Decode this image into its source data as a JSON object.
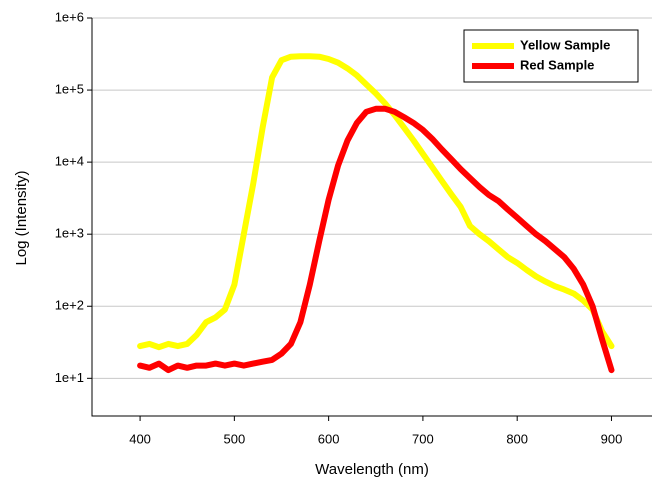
{
  "chart_data": {
    "type": "line",
    "x_label": "Wavelength (nm)",
    "y_label": "Log (Intensity)",
    "log_y": true,
    "grid": true,
    "legend": "upper right",
    "xlim": [
      349,
      943
    ],
    "xticks": [
      400,
      500,
      600,
      700,
      800,
      900
    ],
    "ylim": [
      3,
      1000000
    ],
    "yticks": [
      {
        "value": 10,
        "label": "1e+1"
      },
      {
        "value": 100,
        "label": "1e+2"
      },
      {
        "value": 1000,
        "label": "1e+3"
      },
      {
        "value": 10000,
        "label": "1e+4"
      },
      {
        "value": 100000,
        "label": "1e+5"
      },
      {
        "value": 1000000,
        "label": "1e+6"
      }
    ],
    "x": [
      400,
      410,
      420,
      430,
      440,
      450,
      460,
      470,
      480,
      490,
      500,
      510,
      520,
      530,
      540,
      550,
      560,
      570,
      580,
      590,
      600,
      610,
      620,
      630,
      640,
      650,
      660,
      670,
      680,
      690,
      700,
      710,
      720,
      730,
      740,
      750,
      760,
      770,
      780,
      790,
      800,
      810,
      820,
      830,
      840,
      850,
      860,
      870,
      880,
      890,
      900
    ],
    "series": [
      {
        "name": "Yellow Sample",
        "color": "#ffff00",
        "values": [
          28,
          30,
          27,
          30,
          28,
          30,
          40,
          60,
          70,
          90,
          200,
          1000,
          5000,
          30000,
          150000,
          260000,
          290000,
          295000,
          295000,
          290000,
          270000,
          240000,
          200000,
          160000,
          120000,
          90000,
          65000,
          45000,
          30000,
          20000,
          13000,
          8500,
          5500,
          3600,
          2400,
          1300,
          1000,
          800,
          620,
          480,
          400,
          320,
          260,
          220,
          190,
          170,
          150,
          120,
          90,
          45,
          28
        ]
      },
      {
        "name": "Red Sample",
        "color": "#ff0000",
        "values": [
          15,
          14,
          16,
          13,
          15,
          14,
          15,
          15,
          16,
          15,
          16,
          15,
          16,
          17,
          18,
          22,
          30,
          60,
          200,
          800,
          3000,
          9000,
          20000,
          35000,
          50000,
          55000,
          55000,
          50000,
          42000,
          35000,
          28000,
          21000,
          15000,
          11000,
          8000,
          6000,
          4500,
          3500,
          2900,
          2200,
          1700,
          1300,
          1000,
          800,
          620,
          480,
          330,
          200,
          100,
          35,
          13
        ]
      }
    ]
  }
}
